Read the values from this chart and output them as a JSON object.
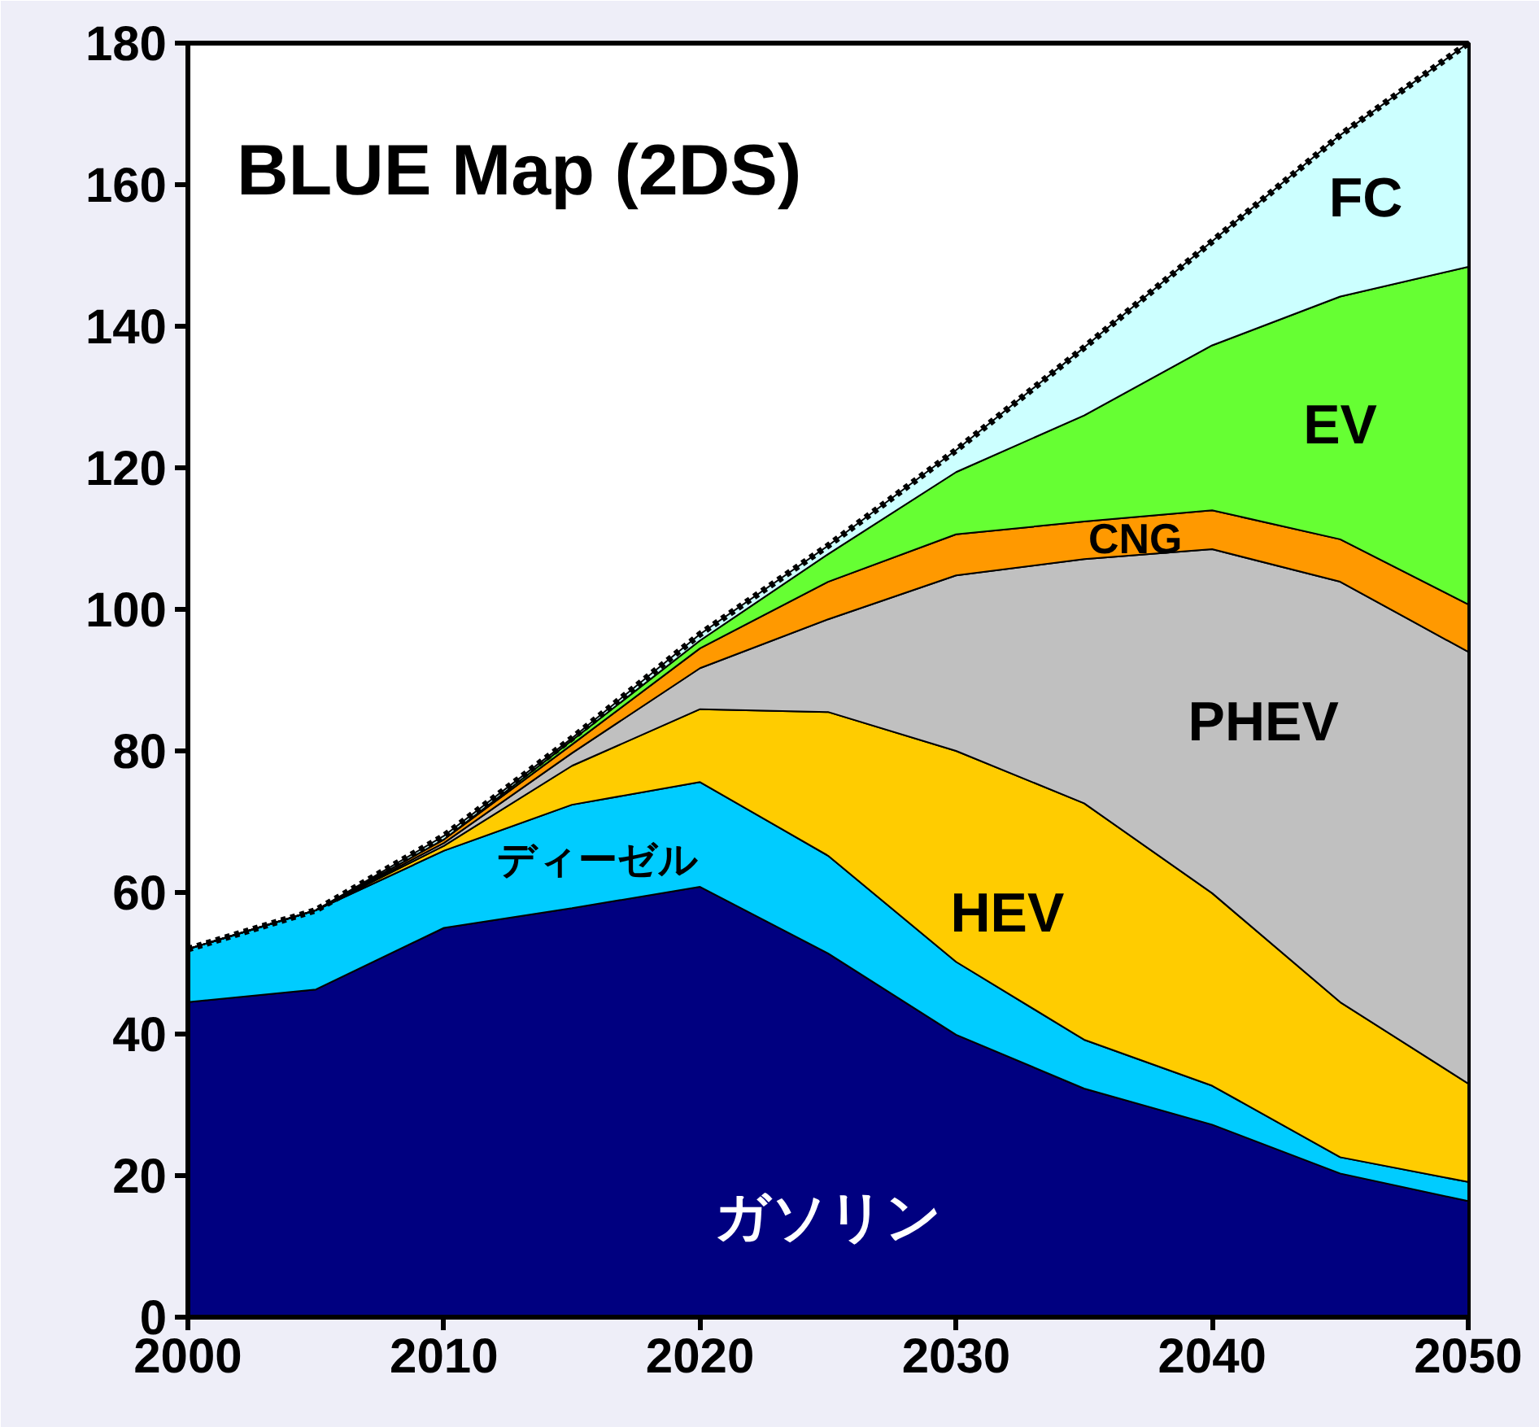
{
  "chart_data": {
    "type": "area",
    "stacked": true,
    "title": "BLUE Map (2DS)",
    "x": [
      2000,
      2005,
      2010,
      2015,
      2020,
      2025,
      2030,
      2035,
      2040,
      2045,
      2050
    ],
    "series": [
      {
        "name": "ガソリン",
        "color": "#000080",
        "values": [
          44.5,
          46.3,
          55,
          57.8,
          60.8,
          51.4,
          39.9,
          32.3,
          27.2,
          20.3,
          16.4
        ]
      },
      {
        "name": "ディーゼル",
        "color": "#00ccff",
        "values": [
          7.5,
          11.2,
          10.9,
          14.6,
          14.8,
          13.8,
          10.3,
          6.9,
          5.5,
          2.3,
          2.7
        ]
      },
      {
        "name": "HEV",
        "color": "#ffcc00",
        "values": [
          0,
          0,
          0.7,
          5.5,
          10.3,
          20.3,
          29.8,
          33.4,
          27.2,
          21.9,
          13.9
        ]
      },
      {
        "name": "PHEV",
        "color": "#c0c0c0",
        "values": [
          0,
          0,
          0.4,
          1.8,
          5.8,
          13.1,
          24.8,
          34.5,
          48.6,
          59.4,
          61
        ]
      },
      {
        "name": "CNG",
        "color": "#ff9900",
        "values": [
          0,
          0,
          0.5,
          1.2,
          2.8,
          5.3,
          5.8,
          5.3,
          5.5,
          6.0,
          6.7
        ]
      },
      {
        "name": "EV",
        "color": "#66ff33",
        "values": [
          0,
          0,
          0,
          0.6,
          1.1,
          3.9,
          8.8,
          15,
          23.3,
          34.3,
          47.7
        ]
      },
      {
        "name": "FC",
        "color": "#ccffff",
        "line_style": "dotted",
        "values": [
          0,
          0,
          0.5,
          0.3,
          0.9,
          1.2,
          3.1,
          9.6,
          14.7,
          22.8,
          31.6
        ]
      }
    ],
    "xlim": [
      2000,
      2050
    ],
    "xticks": [
      2000,
      2010,
      2020,
      2030,
      2040,
      2050
    ],
    "ylim": [
      0,
      180
    ],
    "yticks": [
      0,
      20,
      40,
      60,
      80,
      100,
      120,
      140,
      160,
      180
    ],
    "grid": false
  }
}
